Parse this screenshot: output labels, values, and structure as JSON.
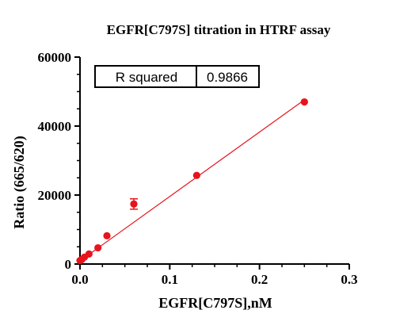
{
  "chart_data": {
    "type": "scatter",
    "title": "EGFR[C797S] titration in  HTRF assay",
    "xlabel": "EGFR[C797S],nM",
    "ylabel": "Ratio (665/620)",
    "xlim": [
      0,
      0.3
    ],
    "ylim": [
      0,
      60000
    ],
    "x_ticks": [
      "0.0",
      "0.1",
      "0.2",
      "0.3"
    ],
    "y_ticks": [
      "0",
      "20000",
      "40000",
      "60000"
    ],
    "grid": false,
    "series": [
      {
        "color": "#e8141c",
        "points": [
          {
            "x": 0.0,
            "y": 1000,
            "err": 0
          },
          {
            "x": 0.002,
            "y": 1300,
            "err": 0
          },
          {
            "x": 0.005,
            "y": 2000,
            "err": 0
          },
          {
            "x": 0.01,
            "y": 2900,
            "err": 0
          },
          {
            "x": 0.02,
            "y": 4700,
            "err": 0
          },
          {
            "x": 0.03,
            "y": 8200,
            "err": 0
          },
          {
            "x": 0.06,
            "y": 17400,
            "err": 1500
          },
          {
            "x": 0.13,
            "y": 25700,
            "err": 0
          },
          {
            "x": 0.25,
            "y": 47000,
            "err": 0
          }
        ]
      }
    ],
    "fit_line": {
      "x": [
        0,
        0.25
      ],
      "y": [
        900,
        47600
      ],
      "color": "#e8141c"
    },
    "stats_table": {
      "label": "R squared",
      "value": "0.9866"
    }
  }
}
